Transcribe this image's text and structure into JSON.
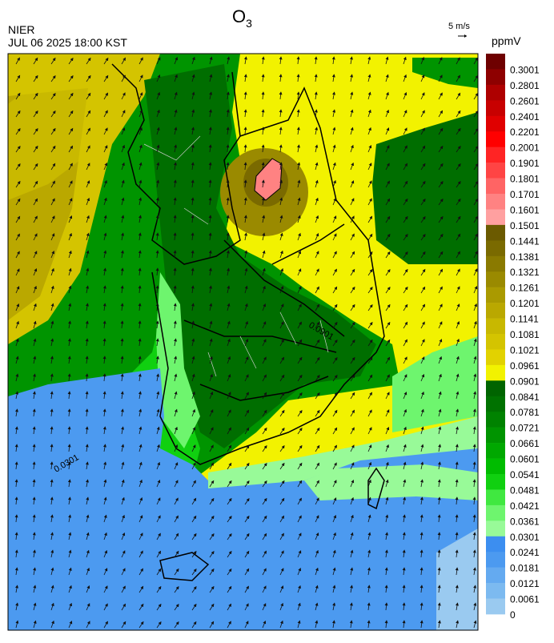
{
  "header": {
    "title": {
      "main": "O",
      "sub": "3"
    },
    "agency": "NIER",
    "datetime": "JUL 06 2025 18:00 KST",
    "vector_scale": "5 m/s",
    "unit": "ppmV"
  },
  "colorbar": {
    "entries": [
      {
        "label": 0.3001,
        "color": "#6e0000"
      },
      {
        "label": 0.2801,
        "color": "#8e0000"
      },
      {
        "label": 0.2601,
        "color": "#ae0000"
      },
      {
        "label": 0.2401,
        "color": "#c80000"
      },
      {
        "label": 0.2201,
        "color": "#e00000"
      },
      {
        "label": 0.2001,
        "color": "#ff0000"
      },
      {
        "label": 0.1901,
        "color": "#ff2424"
      },
      {
        "label": 0.1801,
        "color": "#ff4444"
      },
      {
        "label": 0.1701,
        "color": "#ff6464"
      },
      {
        "label": 0.1601,
        "color": "#ff8282"
      },
      {
        "label": 0.1501,
        "color": "#ffa0a0"
      },
      {
        "label": 0.1441,
        "color": "#6b5a00"
      },
      {
        "label": 0.1381,
        "color": "#7a6a00"
      },
      {
        "label": 0.1321,
        "color": "#8a7a00"
      },
      {
        "label": 0.1261,
        "color": "#9a8a00"
      },
      {
        "label": 0.1201,
        "color": "#aa9a00"
      },
      {
        "label": 0.1141,
        "color": "#baa800"
      },
      {
        "label": 0.1081,
        "color": "#c8b800"
      },
      {
        "label": 0.1021,
        "color": "#d4c400"
      },
      {
        "label": 0.0961,
        "color": "#e2d200"
      },
      {
        "label": 0.0901,
        "color": "#f2f200"
      },
      {
        "label": 0.0841,
        "color": "#006400"
      },
      {
        "label": 0.0781,
        "color": "#007200"
      },
      {
        "label": 0.0721,
        "color": "#008200"
      },
      {
        "label": 0.0661,
        "color": "#009400"
      },
      {
        "label": 0.0601,
        "color": "#00a800"
      },
      {
        "label": 0.0541,
        "color": "#00bc00"
      },
      {
        "label": 0.0481,
        "color": "#10d010"
      },
      {
        "label": 0.0421,
        "color": "#40e840"
      },
      {
        "label": 0.0361,
        "color": "#6ef56e"
      },
      {
        "label": 0.0301,
        "color": "#98fa98"
      },
      {
        "label": 0.0241,
        "color": "#3c8ef0"
      },
      {
        "label": 0.0181,
        "color": "#4c9af0"
      },
      {
        "label": 0.0121,
        "color": "#64aaf0"
      },
      {
        "label": 0.0061,
        "color": "#7cbaf0"
      },
      {
        "label": 0,
        "color": "#9acaf0"
      }
    ]
  },
  "map": {
    "contour_labels": [
      "0.0901",
      "0.0301"
    ]
  }
}
